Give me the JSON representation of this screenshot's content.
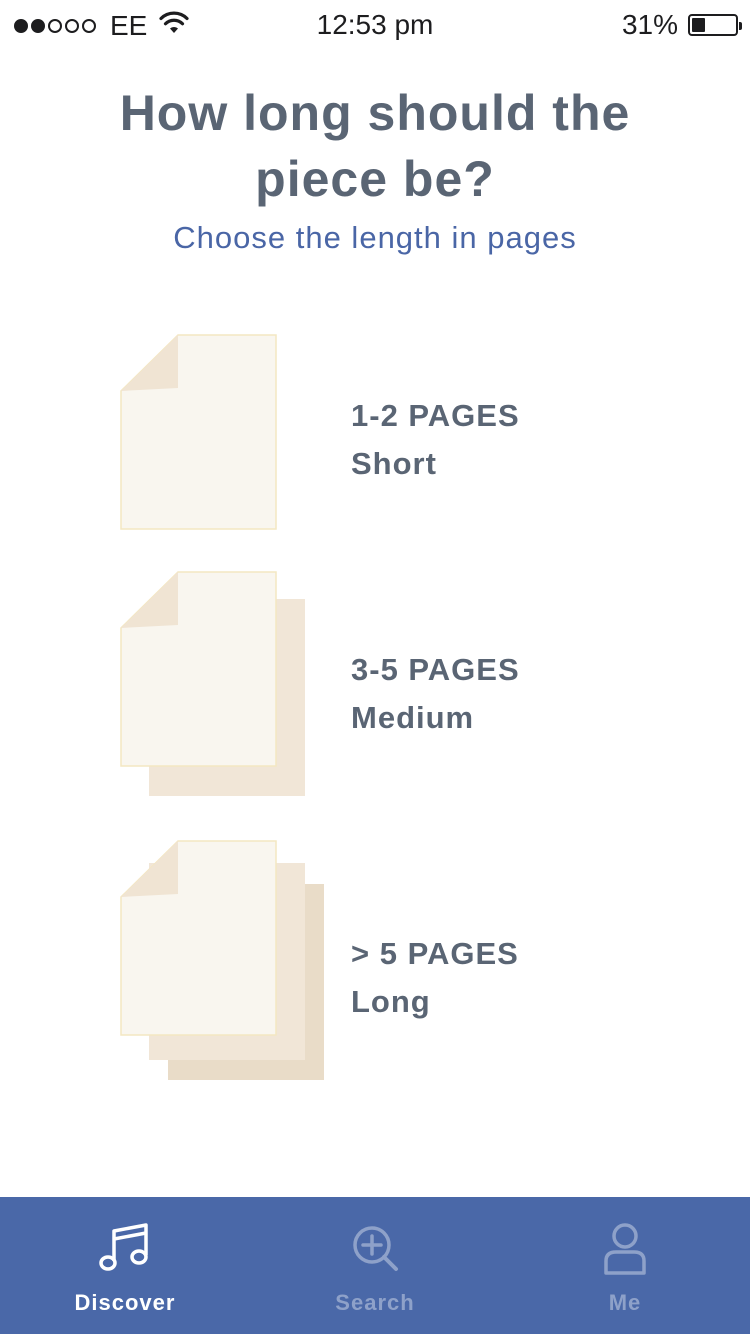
{
  "status_bar": {
    "signal_filled": 2,
    "signal_total": 5,
    "carrier": "EE",
    "time": "12:53 pm",
    "battery_percent": "31%",
    "battery_level": 0.31
  },
  "header": {
    "title": "How long should the piece be?",
    "subtitle": "Choose the length in pages"
  },
  "options": [
    {
      "pages": "1-2 PAGES",
      "label": "Short",
      "stack": 1
    },
    {
      "pages": "3-5 PAGES",
      "label": "Medium",
      "stack": 2
    },
    {
      "pages": "> 5 PAGES",
      "label": "Long",
      "stack": 3
    }
  ],
  "tab_bar": {
    "tabs": [
      {
        "label": "Discover",
        "icon": "music-note-icon",
        "active": true
      },
      {
        "label": "Search",
        "icon": "zoom-in-icon",
        "active": false
      },
      {
        "label": "Me",
        "icon": "person-icon",
        "active": false
      }
    ]
  },
  "colors": {
    "tab_bar_bg": "#4a68a8",
    "title": "#5a6574",
    "subtitle": "#4a66a6",
    "page_front": "#f9f6ef",
    "page_fold": "#f0e4d3",
    "page_back_1": "#f1e6d7",
    "page_back_2": "#e9dcc8"
  }
}
